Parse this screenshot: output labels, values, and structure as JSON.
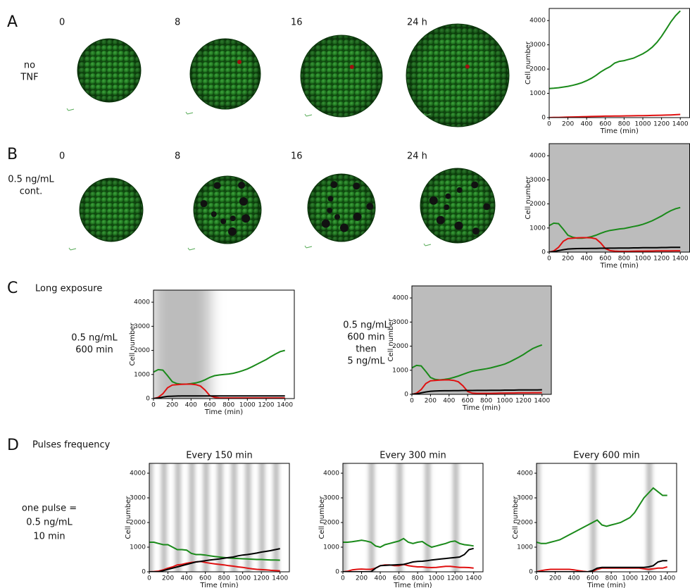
{
  "panels": [
    {
      "letter": "A",
      "row_label": [
        "no",
        "TNF"
      ],
      "times": [
        "0",
        "8",
        "16",
        "24 h"
      ]
    },
    {
      "letter": "B",
      "row_label": [
        "0.5 ng/mL",
        "cont."
      ],
      "times": [
        "0",
        "8",
        "16",
        "24 h"
      ]
    },
    {
      "letter": "C",
      "title": "Long exposure",
      "conditions": [
        [
          "0.5 ng/mL",
          "600 min"
        ],
        [
          "0.5 ng/mL",
          "600 min",
          "then",
          "5 ng/mL"
        ]
      ]
    },
    {
      "letter": "D",
      "title": "Pulses frequency",
      "row_label": [
        "one pulse =",
        "0.5 ng/mL",
        "10 min"
      ]
    }
  ],
  "chart_data": [
    {
      "type": "line",
      "xlabel": "Time (min)",
      "ylabel": "Cell number",
      "x": [
        0,
        50,
        100,
        150,
        200,
        250,
        300,
        350,
        400,
        450,
        500,
        550,
        600,
        650,
        700,
        750,
        800,
        850,
        900,
        950,
        1000,
        1050,
        1100,
        1150,
        1200,
        1250,
        1300,
        1350,
        1400
      ],
      "xlim": [
        0,
        1500
      ],
      "ylim": [
        0,
        4500
      ],
      "xticks": [
        0,
        200,
        400,
        600,
        800,
        1000,
        1200,
        1400
      ],
      "yticks": [
        0,
        1000,
        2000,
        3000,
        4000
      ],
      "shade": [],
      "series": [
        {
          "color": "#1a8a1a",
          "values": [
            1200,
            1210,
            1230,
            1260,
            1290,
            1330,
            1380,
            1440,
            1520,
            1620,
            1740,
            1880,
            2000,
            2100,
            2250,
            2320,
            2350,
            2400,
            2450,
            2540,
            2630,
            2750,
            2900,
            3100,
            3350,
            3650,
            3950,
            4200,
            4400
          ]
        },
        {
          "color": "#e01010",
          "values": [
            0,
            5,
            10,
            15,
            20,
            25,
            30,
            35,
            40,
            45,
            50,
            55,
            60,
            62,
            65,
            68,
            70,
            72,
            75,
            78,
            80,
            85,
            90,
            95,
            100,
            105,
            110,
            120,
            130
          ]
        }
      ]
    },
    {
      "type": "line",
      "xlabel": "Time (min)",
      "ylabel": "Cell number",
      "x": [
        0,
        50,
        100,
        150,
        200,
        250,
        300,
        350,
        400,
        450,
        500,
        550,
        600,
        650,
        700,
        750,
        800,
        850,
        900,
        950,
        1000,
        1050,
        1100,
        1150,
        1200,
        1250,
        1300,
        1350,
        1400
      ],
      "xlim": [
        0,
        1500
      ],
      "ylim": [
        0,
        4500
      ],
      "xticks": [
        0,
        200,
        400,
        600,
        800,
        1000,
        1200,
        1400
      ],
      "yticks": [
        0,
        1000,
        2000,
        3000,
        4000
      ],
      "shade": [
        [
          0,
          1500
        ]
      ],
      "series": [
        {
          "color": "#1a8a1a",
          "values": [
            1100,
            1200,
            1180,
            950,
            700,
            620,
            580,
            580,
            600,
            640,
            700,
            780,
            850,
            900,
            930,
            960,
            980,
            1020,
            1060,
            1100,
            1150,
            1220,
            1300,
            1400,
            1500,
            1620,
            1720,
            1800,
            1850
          ]
        },
        {
          "color": "#e01010",
          "values": [
            0,
            50,
            200,
            450,
            560,
            580,
            590,
            600,
            600,
            590,
            550,
            380,
            150,
            60,
            40,
            30,
            30,
            30,
            35,
            40,
            40,
            45,
            45,
            50,
            50,
            50,
            50,
            55,
            55
          ]
        },
        {
          "color": "#000000",
          "values": [
            0,
            20,
            60,
            100,
            130,
            140,
            145,
            150,
            150,
            155,
            155,
            160,
            160,
            165,
            165,
            170,
            170,
            170,
            175,
            175,
            180,
            180,
            185,
            185,
            190,
            190,
            195,
            200,
            200
          ]
        }
      ]
    },
    {
      "type": "line",
      "xlabel": "Time (min)",
      "ylabel": "Cell number",
      "x": [
        0,
        50,
        100,
        150,
        200,
        250,
        300,
        350,
        400,
        450,
        500,
        550,
        600,
        650,
        700,
        750,
        800,
        850,
        900,
        950,
        1000,
        1050,
        1100,
        1150,
        1200,
        1250,
        1300,
        1350,
        1400
      ],
      "xlim": [
        0,
        1500
      ],
      "ylim": [
        0,
        4500
      ],
      "xticks": [
        0,
        200,
        400,
        600,
        800,
        1000,
        1200,
        1400
      ],
      "yticks": [
        0,
        1000,
        2000,
        3000,
        4000
      ],
      "shade": [
        [
          0,
          600
        ]
      ],
      "series": [
        {
          "color": "#1a8a1a",
          "values": [
            1100,
            1200,
            1180,
            950,
            700,
            620,
            600,
            600,
            620,
            650,
            700,
            780,
            880,
            950,
            980,
            1000,
            1020,
            1050,
            1100,
            1160,
            1230,
            1320,
            1420,
            1520,
            1620,
            1740,
            1850,
            1950,
            2000
          ]
        },
        {
          "color": "#e01010",
          "values": [
            0,
            50,
            200,
            450,
            560,
            580,
            590,
            600,
            600,
            580,
            520,
            350,
            120,
            50,
            30,
            25,
            25,
            25,
            25,
            25,
            25,
            25,
            25,
            25,
            25,
            25,
            25,
            25,
            25
          ]
        },
        {
          "color": "#000000",
          "values": [
            0,
            20,
            60,
            90,
            100,
            105,
            110,
            110,
            110,
            110,
            110,
            110,
            110,
            110,
            110,
            110,
            110,
            110,
            110,
            110,
            110,
            110,
            110,
            110,
            110,
            110,
            110,
            110,
            110
          ]
        }
      ]
    },
    {
      "type": "line",
      "xlabel": "Time (min)",
      "ylabel": "Cell number",
      "x": [
        0,
        50,
        100,
        150,
        200,
        250,
        300,
        350,
        400,
        450,
        500,
        550,
        600,
        650,
        700,
        750,
        800,
        850,
        900,
        950,
        1000,
        1050,
        1100,
        1150,
        1200,
        1250,
        1300,
        1350,
        1400
      ],
      "xlim": [
        0,
        1500
      ],
      "ylim": [
        0,
        4500
      ],
      "xticks": [
        0,
        200,
        400,
        600,
        800,
        1000,
        1200,
        1400
      ],
      "yticks": [
        0,
        1000,
        2000,
        3000,
        4000
      ],
      "shade": [
        [
          0,
          1500
        ]
      ],
      "series": [
        {
          "color": "#1a8a1a",
          "values": [
            1100,
            1200,
            1180,
            950,
            700,
            620,
            600,
            620,
            650,
            700,
            760,
            830,
            900,
            960,
            1000,
            1030,
            1060,
            1100,
            1150,
            1200,
            1260,
            1340,
            1440,
            1540,
            1650,
            1780,
            1900,
            1980,
            2050
          ]
        },
        {
          "color": "#e01010",
          "values": [
            0,
            50,
            200,
            450,
            560,
            580,
            590,
            600,
            600,
            580,
            520,
            350,
            120,
            50,
            40,
            40,
            40,
            40,
            45,
            50,
            50,
            55,
            55,
            60,
            60,
            60,
            65,
            65,
            70
          ]
        },
        {
          "color": "#000000",
          "values": [
            0,
            20,
            60,
            100,
            130,
            140,
            145,
            150,
            150,
            155,
            155,
            160,
            160,
            160,
            165,
            165,
            165,
            170,
            170,
            170,
            175,
            175,
            175,
            180,
            180,
            180,
            185,
            185,
            190
          ]
        }
      ]
    },
    {
      "type": "line",
      "title": "Every 150 min",
      "xlabel": "Time (min)",
      "ylabel": "Cell number",
      "x": [
        0,
        50,
        100,
        150,
        200,
        250,
        300,
        350,
        400,
        450,
        500,
        550,
        600,
        650,
        700,
        750,
        800,
        850,
        900,
        950,
        1000,
        1050,
        1100,
        1150,
        1200,
        1250,
        1300,
        1350,
        1400
      ],
      "xlim": [
        0,
        1500
      ],
      "ylim": [
        0,
        4400
      ],
      "xticks": [
        0,
        200,
        400,
        600,
        800,
        1000,
        1200,
        1400
      ],
      "yticks": [
        0,
        1000,
        2000,
        3000,
        4000
      ],
      "shade": [
        [
          0,
          10
        ],
        [
          150,
          160
        ],
        [
          300,
          310
        ],
        [
          450,
          460
        ],
        [
          600,
          610
        ],
        [
          750,
          760
        ],
        [
          900,
          910
        ],
        [
          1050,
          1060
        ],
        [
          1200,
          1210
        ],
        [
          1350,
          1360
        ]
      ],
      "series": [
        {
          "color": "#1a8a1a",
          "values": [
            1200,
            1200,
            1150,
            1100,
            1100,
            1000,
            900,
            900,
            880,
            750,
            700,
            700,
            680,
            650,
            620,
            600,
            580,
            560,
            550,
            540,
            530,
            520,
            510,
            500,
            500,
            490,
            480,
            480,
            470
          ]
        },
        {
          "color": "#e01010",
          "values": [
            0,
            10,
            30,
            80,
            150,
            200,
            280,
            300,
            350,
            380,
            400,
            420,
            380,
            350,
            320,
            300,
            280,
            250,
            230,
            200,
            180,
            150,
            120,
            100,
            90,
            80,
            60,
            50,
            40
          ]
        },
        {
          "color": "#000000",
          "values": [
            0,
            0,
            0,
            50,
            100,
            150,
            200,
            250,
            300,
            350,
            400,
            420,
            450,
            480,
            500,
            520,
            550,
            580,
            600,
            650,
            680,
            700,
            730,
            760,
            800,
            830,
            860,
            900,
            940
          ]
        }
      ]
    },
    {
      "type": "line",
      "title": "Every 300 min",
      "xlabel": "Time (min)",
      "ylabel": "Cell number",
      "x": [
        0,
        50,
        100,
        150,
        200,
        250,
        300,
        350,
        400,
        450,
        500,
        550,
        600,
        650,
        700,
        750,
        800,
        850,
        900,
        950,
        1000,
        1050,
        1100,
        1150,
        1200,
        1250,
        1300,
        1350,
        1400
      ],
      "xlim": [
        0,
        1500
      ],
      "ylim": [
        0,
        4400
      ],
      "xticks": [
        0,
        200,
        400,
        600,
        800,
        1000,
        1200,
        1400
      ],
      "yticks": [
        0,
        1000,
        2000,
        3000,
        4000
      ],
      "shade": [
        [
          0,
          10
        ],
        [
          300,
          310
        ],
        [
          600,
          610
        ],
        [
          900,
          910
        ],
        [
          1200,
          1210
        ]
      ],
      "series": [
        {
          "color": "#1a8a1a",
          "values": [
            1200,
            1200,
            1220,
            1250,
            1280,
            1250,
            1200,
            1050,
            1000,
            1100,
            1150,
            1200,
            1250,
            1350,
            1200,
            1150,
            1200,
            1230,
            1100,
            1000,
            1050,
            1100,
            1150,
            1220,
            1250,
            1150,
            1100,
            1080,
            1050
          ]
        },
        {
          "color": "#e01010",
          "values": [
            0,
            20,
            80,
            100,
            110,
            100,
            100,
            150,
            250,
            280,
            280,
            250,
            250,
            300,
            250,
            220,
            200,
            200,
            180,
            170,
            180,
            200,
            220,
            220,
            200,
            180,
            180,
            170,
            150
          ]
        },
        {
          "color": "#000000",
          "values": [
            0,
            0,
            0,
            0,
            0,
            0,
            0,
            150,
            250,
            260,
            270,
            280,
            290,
            300,
            350,
            400,
            420,
            430,
            450,
            480,
            500,
            520,
            540,
            560,
            580,
            600,
            700,
            900,
            950
          ]
        }
      ]
    },
    {
      "type": "line",
      "title": "Every 600 min",
      "xlabel": "Time (min)",
      "ylabel": "Cell number",
      "x": [
        0,
        50,
        100,
        150,
        200,
        250,
        300,
        350,
        400,
        450,
        500,
        550,
        600,
        650,
        700,
        750,
        800,
        850,
        900,
        950,
        1000,
        1050,
        1100,
        1150,
        1200,
        1250,
        1300,
        1350,
        1400
      ],
      "xlim": [
        0,
        1500
      ],
      "ylim": [
        0,
        4400
      ],
      "xticks": [
        0,
        200,
        400,
        600,
        800,
        1000,
        1200,
        1400
      ],
      "yticks": [
        0,
        1000,
        2000,
        3000,
        4000
      ],
      "shade": [
        [
          0,
          10
        ],
        [
          600,
          610
        ],
        [
          1200,
          1210
        ]
      ],
      "series": [
        {
          "color": "#1a8a1a",
          "values": [
            1200,
            1150,
            1150,
            1200,
            1250,
            1300,
            1400,
            1500,
            1600,
            1700,
            1800,
            1900,
            2000,
            2100,
            1900,
            1850,
            1900,
            1950,
            2000,
            2100,
            2200,
            2400,
            2700,
            3000,
            3200,
            3400,
            3250,
            3100,
            3100
          ]
        },
        {
          "color": "#e01010",
          "values": [
            0,
            50,
            80,
            100,
            100,
            100,
            100,
            100,
            80,
            50,
            20,
            0,
            20,
            100,
            150,
            150,
            150,
            150,
            150,
            150,
            150,
            150,
            150,
            120,
            100,
            120,
            150,
            150,
            200
          ]
        },
        {
          "color": "#000000",
          "values": [
            0,
            0,
            0,
            0,
            0,
            0,
            0,
            0,
            0,
            0,
            0,
            0,
            50,
            150,
            180,
            180,
            180,
            180,
            180,
            180,
            180,
            180,
            180,
            180,
            200,
            250,
            400,
            450,
            450
          ]
        }
      ]
    }
  ]
}
